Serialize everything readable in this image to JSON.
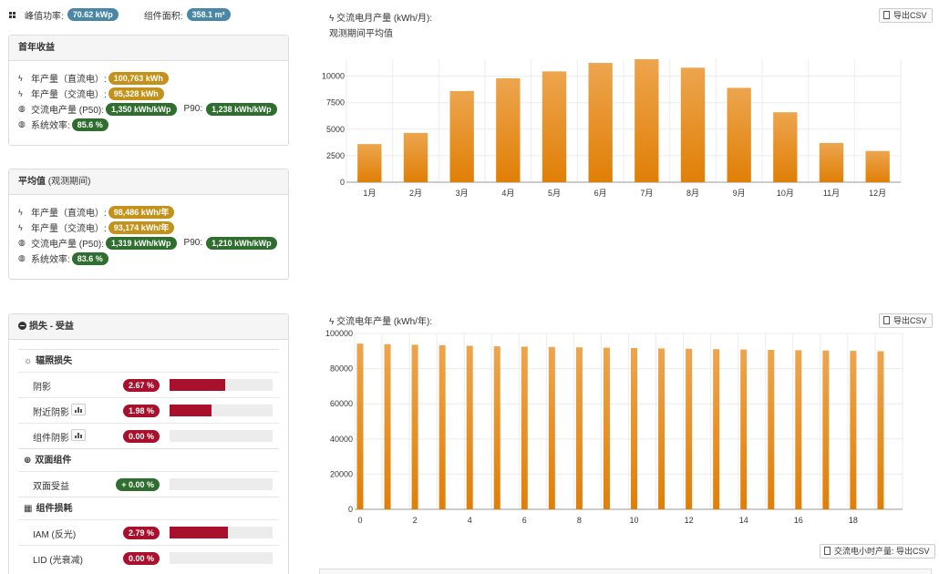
{
  "top": {
    "peak_label": "峰值功率:",
    "peak_value": "70.62 kWp",
    "area_label": "组件面积:",
    "area_value": "358.1 m²"
  },
  "first_year": {
    "title": "首年收益",
    "rows": [
      {
        "label": "年产量（直流电）:",
        "value": "100,763 kWh"
      },
      {
        "label": "年产量（交流电）:",
        "value": "95,328 kWh"
      },
      {
        "label": "交流电产量 (P50):",
        "value": "1,350 kWh/kWp",
        "p90_label": "P90:",
        "p90_value": "1,238 kWh/kWp"
      },
      {
        "label": "系统效率:",
        "value": "85.6 %"
      }
    ]
  },
  "average": {
    "title": "平均值",
    "subtitle": "(观测期间)",
    "rows": [
      {
        "label": "年产量（直流电）:",
        "value": "98,486 kWh/年"
      },
      {
        "label": "年产量（交流电）:",
        "value": "93,174 kWh/年"
      },
      {
        "label": "交流电产量 (P50):",
        "value": "1,319 kWh/kWp",
        "p90_label": "P90:",
        "p90_value": "1,210 kWh/kWp"
      },
      {
        "label": "系统效率:",
        "value": "83.6 %"
      }
    ]
  },
  "losses": {
    "title": "损失 - 受益",
    "sections": [
      {
        "title": "辐照损失",
        "icon": "sun-icon",
        "rows": [
          {
            "label": "阴影",
            "value": "2.67 %",
            "fraction": 0.54,
            "chart_icon": false,
            "positive": false
          },
          {
            "label": "附近阴影",
            "value": "1.98 %",
            "fraction": 0.41,
            "chart_icon": true,
            "positive": false
          },
          {
            "label": "组件阴影",
            "value": "0.00 %",
            "fraction": 0.0,
            "chart_icon": true,
            "positive": false
          }
        ]
      },
      {
        "title": "双面组件",
        "icon": "plus-circle-icon",
        "rows": [
          {
            "label": "双面受益",
            "value": "+ 0.00 %",
            "fraction": 0.0,
            "chart_icon": false,
            "positive": true
          }
        ]
      },
      {
        "title": "组件损耗",
        "icon": "grid-icon",
        "rows": [
          {
            "label": "IAM (反光)",
            "value": "2.79 %",
            "fraction": 0.57,
            "chart_icon": false,
            "positive": false
          },
          {
            "label": "LID (光衰减)",
            "value": "0.00 %",
            "fraction": 0.0,
            "chart_icon": false,
            "positive": false
          }
        ]
      }
    ]
  },
  "monthly": {
    "title": "交流电月产量 (kWh/月):",
    "subtitle": "观测期间平均值",
    "export_label": "导出CSV"
  },
  "yearly": {
    "title": "交流电年产量 (kWh/年):",
    "export_label": "导出CSV"
  },
  "hourly_export_label": "交流电小时产量: 导出CSV",
  "colors": {
    "bar": "#e07f06",
    "bar_light": "#eda54e",
    "badge_blue": "#4a86a8",
    "badge_gold": "#c4921b",
    "badge_green": "#2f6e2f",
    "badge_red": "#a8102c"
  },
  "chart_data": [
    {
      "type": "bar",
      "categories": [
        "1月",
        "2月",
        "3月",
        "4月",
        "5月",
        "6月",
        "7月",
        "8月",
        "9月",
        "10月",
        "11月",
        "12月"
      ],
      "values": [
        3600,
        4650,
        8600,
        9800,
        10450,
        11250,
        11600,
        10800,
        8900,
        6600,
        3700,
        2950
      ],
      "ylim": [
        0,
        11600
      ],
      "yticks": [
        0,
        2500,
        5000,
        7500,
        10000
      ],
      "grid": true
    },
    {
      "type": "bar",
      "x": [
        0,
        1,
        2,
        3,
        4,
        5,
        6,
        7,
        8,
        9,
        10,
        11,
        12,
        13,
        14,
        15,
        16,
        17,
        18,
        19
      ],
      "values": [
        94200,
        93900,
        93600,
        93300,
        93000,
        92700,
        92500,
        92300,
        92100,
        91900,
        91700,
        91500,
        91300,
        91100,
        90900,
        90700,
        90500,
        90300,
        90100,
        89900
      ],
      "xticks": [
        0,
        2,
        4,
        6,
        8,
        10,
        12,
        14,
        16,
        18
      ],
      "ylim": [
        0,
        100000
      ],
      "yticks": [
        0,
        20000,
        40000,
        60000,
        80000,
        100000
      ],
      "grid": true
    }
  ]
}
